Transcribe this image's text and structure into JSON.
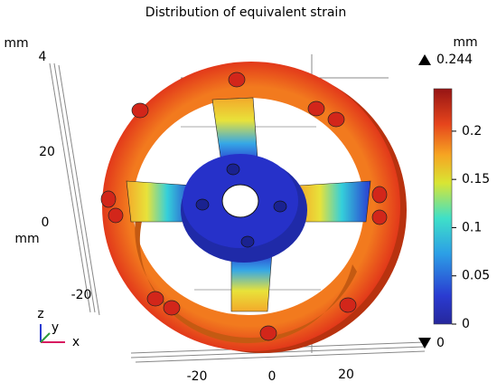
{
  "title": "Distribution of equivalent strain",
  "colorbar": {
    "unit": "mm",
    "max": 0.244,
    "min": 0,
    "ticks": [
      0,
      0.05,
      0.1,
      0.15,
      0.2
    ]
  },
  "axes": {
    "vertical_unit": "mm",
    "vertical_ticks": [
      4,
      20,
      0,
      -20
    ],
    "side_unit": "mm",
    "bottom_ticks": [
      -20,
      0,
      20
    ],
    "triad": [
      "z",
      "y",
      "x"
    ]
  }
}
